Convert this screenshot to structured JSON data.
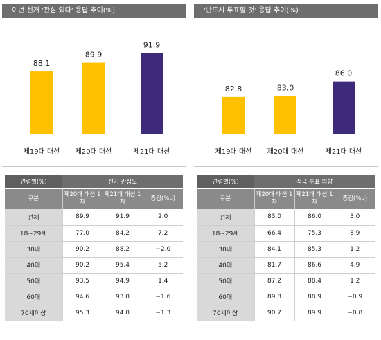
{
  "panels": [
    {
      "title": "이번 선거 '관심 있다' 응답 추이(%)",
      "table": {
        "corner": "연령별(%)",
        "group_header": "선거 관심도",
        "row_header": "구분",
        "col_headers": [
          "제20대 대선 1차",
          "제21대 대선 1차",
          "증감(%p)"
        ],
        "rows": [
          {
            "label": "전체",
            "values": [
              "89.9",
              "91.9",
              "2.0"
            ]
          },
          {
            "label": "18~29세",
            "values": [
              "77.0",
              "84.2",
              "7.2"
            ]
          },
          {
            "label": "30대",
            "values": [
              "90.2",
              "88.2",
              "−2.0"
            ]
          },
          {
            "label": "40대",
            "values": [
              "90.2",
              "95.4",
              "5.2"
            ]
          },
          {
            "label": "50대",
            "values": [
              "93.5",
              "94.9",
              "1.4"
            ]
          },
          {
            "label": "60대",
            "values": [
              "94.6",
              "93.0",
              "−1.6"
            ]
          },
          {
            "label": "70세이상",
            "values": [
              "95.3",
              "94.0",
              "−1.3"
            ]
          }
        ]
      }
    },
    {
      "title": "'반드시 투표할 것' 응답 추이(%)",
      "table": {
        "corner": "연령별(%)",
        "group_header": "적극 투표 의향",
        "row_header": "구분",
        "col_headers": [
          "제20대 대선 1차",
          "제21대 대선 1차",
          "증감(%p)"
        ],
        "rows": [
          {
            "label": "전체",
            "values": [
              "83.0",
              "86.0",
              "3.0"
            ]
          },
          {
            "label": "18~29세",
            "values": [
              "66.4",
              "75.3",
              "8.9"
            ]
          },
          {
            "label": "30대",
            "values": [
              "84.1",
              "85.3",
              "1.2"
            ]
          },
          {
            "label": "40대",
            "values": [
              "81.7",
              "86.6",
              "4.9"
            ]
          },
          {
            "label": "50대",
            "values": [
              "87.2",
              "88.4",
              "1.2"
            ]
          },
          {
            "label": "60대",
            "values": [
              "89.8",
              "88.9",
              "−0.9"
            ]
          },
          {
            "label": "70세이상",
            "values": [
              "90.7",
              "89.9",
              "−0.8"
            ]
          }
        ]
      }
    }
  ],
  "colors": {
    "bar_default": "#ffc000",
    "bar_highlight": "#3d2a7a"
  },
  "chart_data": [
    {
      "type": "bar",
      "title": "이번 선거 '관심 있다' 응답 추이(%)",
      "categories": [
        "제19대 대선",
        "제20대 대선",
        "제21대 대선"
      ],
      "values": [
        88.1,
        89.9,
        91.9
      ],
      "value_labels": [
        "88.1",
        "89.9",
        "91.9"
      ],
      "highlight_index": 2
    },
    {
      "type": "bar",
      "title": "'반드시 투표할 것' 응답 추이(%)",
      "categories": [
        "제19대 대선",
        "제20대 대선",
        "제21대 대선"
      ],
      "values": [
        82.8,
        83.0,
        86.0
      ],
      "value_labels": [
        "82.8",
        "83.0",
        "86.0"
      ],
      "highlight_index": 2
    }
  ]
}
